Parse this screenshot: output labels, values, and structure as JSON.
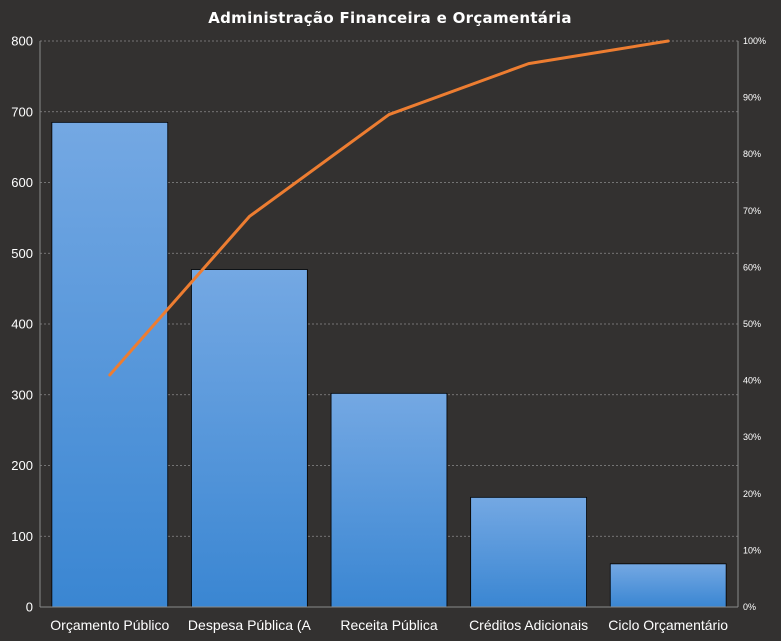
{
  "chart_data": {
    "type": "bar",
    "title": "Administração  Financeira  e Orçamentária",
    "categories": [
      "Orçamento Público",
      "Despesa Pública (A",
      "Receita Pública",
      "Créditos Adicionais",
      "Ciclo Orçamentário"
    ],
    "series": [
      {
        "type": "bar",
        "values": [
          685,
          477,
          302,
          155,
          61
        ]
      },
      {
        "type": "line",
        "axis": "secondary",
        "values": [
          0.41,
          0.69,
          0.87,
          0.96,
          1.0
        ]
      }
    ],
    "ylim": [
      0,
      800
    ],
    "yticks": [
      0,
      100,
      200,
      300,
      400,
      500,
      600,
      700,
      800
    ],
    "y2lim": [
      0,
      1
    ],
    "y2ticks": [
      "0%",
      "10%",
      "20%",
      "30%",
      "40%",
      "50%",
      "60%",
      "70%",
      "80%",
      "90%",
      "100%"
    ],
    "grid": true,
    "legend": "none"
  },
  "colors": {
    "background": "#333130",
    "bar_light": "#74a8e3",
    "bar_dark": "#3a86d2",
    "line": "#ed7d31",
    "text": "#ffffff",
    "grid": "#8a8a8a"
  }
}
